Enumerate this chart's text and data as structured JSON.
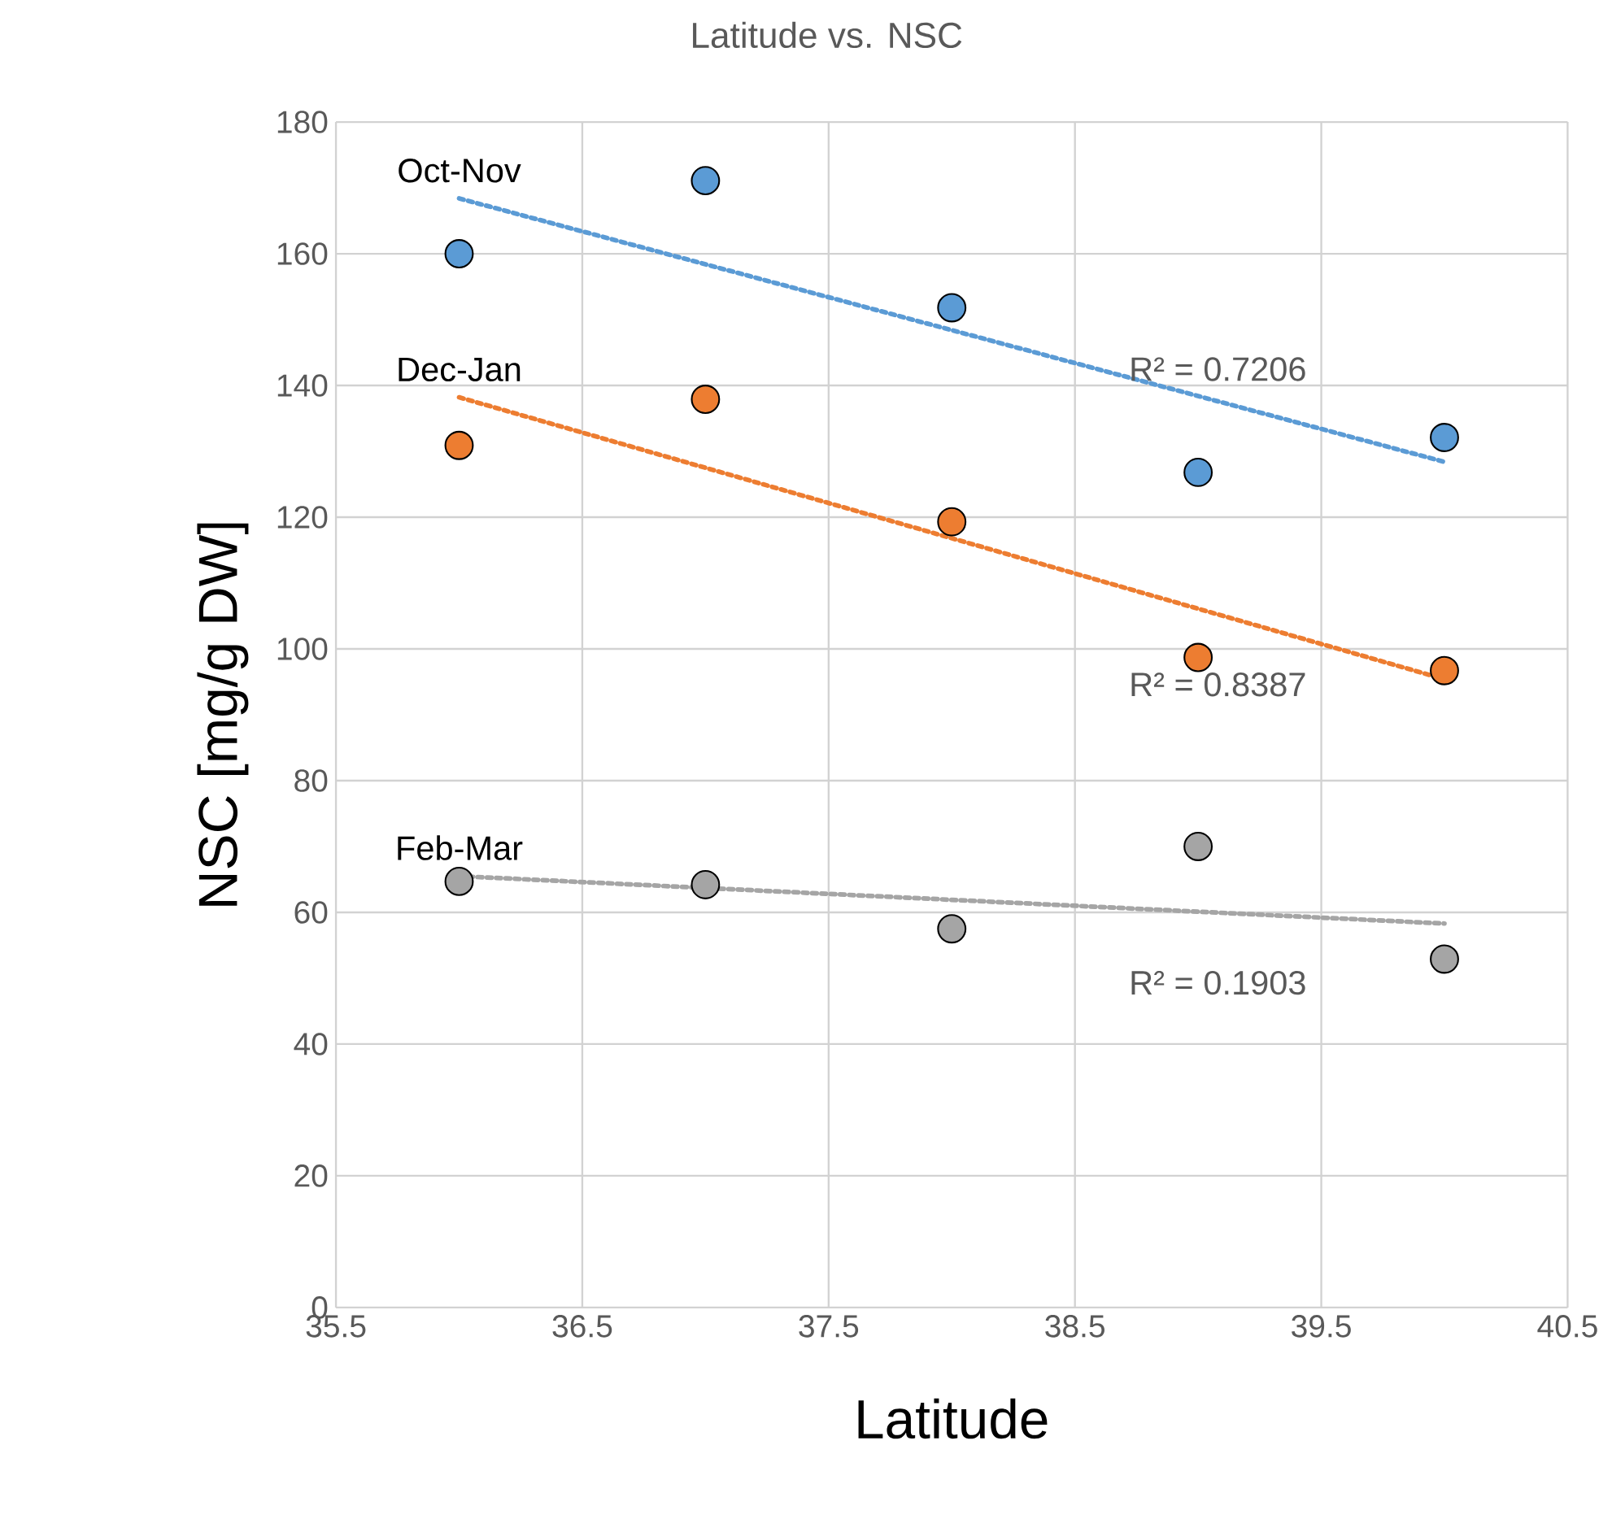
{
  "chart_data": {
    "type": "scatter",
    "title": "Latitude vs. NSC",
    "xlabel": "Latitude",
    "ylabel": "NSC [mg/g DW]",
    "xlim": [
      35.5,
      40.5
    ],
    "xticks": [
      35.5,
      36.5,
      37.5,
      38.5,
      39.5,
      40.5
    ],
    "ylim": [
      0,
      180
    ],
    "yticks": [
      0,
      20,
      40,
      60,
      80,
      100,
      120,
      140,
      160,
      180
    ],
    "grid": true,
    "series": [
      {
        "name": "Oct-Nov",
        "color": "#5b9bd5",
        "marker": "circle",
        "x": [
          36,
          37,
          38,
          39,
          40
        ],
        "values": [
          160,
          171.1,
          151.8,
          126.8,
          132.1
        ]
      },
      {
        "name": "Dec-Jan",
        "color": "#ed7d31",
        "marker": "circle",
        "x": [
          36,
          37,
          38,
          39,
          40
        ],
        "values": [
          130.9,
          137.9,
          119.3,
          98.7,
          96.7
        ]
      },
      {
        "name": "Feb-Mar",
        "color": "#a5a5a5",
        "marker": "circle",
        "x": [
          36,
          37,
          38,
          39,
          40
        ],
        "values": [
          64.7,
          64.2,
          57.5,
          70.0,
          52.9
        ]
      },
      {
        "type": "line",
        "color": "#5b9bd5",
        "line_style": "dotted",
        "marker": "none",
        "x": [
          36,
          40
        ],
        "values": [
          168.4,
          128.4
        ]
      },
      {
        "type": "line",
        "color": "#ed7d31",
        "line_style": "dotted",
        "marker": "none",
        "x": [
          36,
          40
        ],
        "values": [
          138.2,
          95.4
        ]
      },
      {
        "type": "line",
        "color": "#a5a5a5",
        "line_style": "dotted",
        "marker": "none",
        "x": [
          36,
          40
        ],
        "values": [
          65.5,
          58.3
        ]
      }
    ],
    "annotations": [
      "R² = 0.7206",
      "R² = 0.8387",
      "R² = 0.1903"
    ]
  }
}
